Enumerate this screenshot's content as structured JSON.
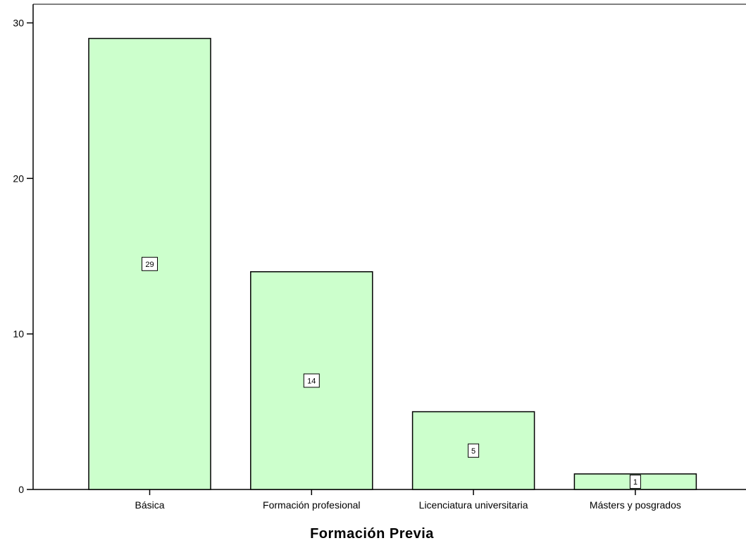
{
  "chart_data": {
    "type": "bar",
    "title": "",
    "xlabel": "Formación Previa",
    "ylabel": "",
    "categories": [
      "Básica",
      "Formación profesional",
      "Licenciatura universitaria",
      "Másters y posgrados"
    ],
    "values": [
      29,
      14,
      5,
      1
    ],
    "data_labels": [
      "29",
      "14",
      "5",
      "1"
    ],
    "y_ticks": [
      0,
      10,
      20,
      30
    ],
    "y_tick_labels": [
      "0",
      "10",
      "20",
      "30"
    ],
    "ylim": [
      0,
      31.2
    ],
    "grid": false,
    "legend": "none",
    "colors": {
      "bar_fill": "#ccffcc",
      "bar_stroke": "#000000",
      "axis": "#000000",
      "label_box_fill": "#ffffff"
    }
  }
}
